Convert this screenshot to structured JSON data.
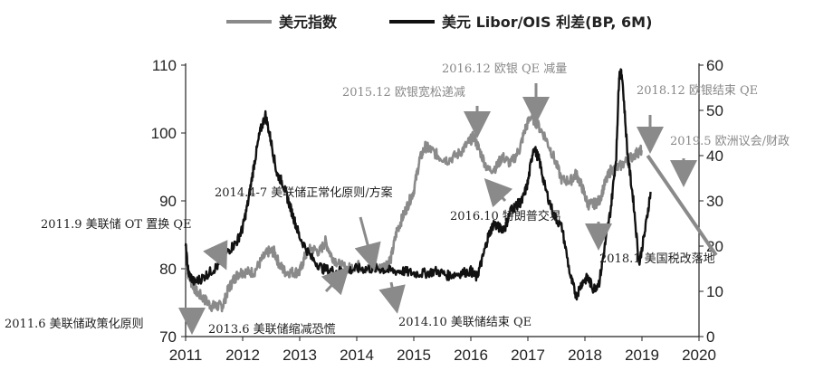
{
  "chart_data": {
    "type": "line",
    "legend": [
      {
        "label": "美元指数",
        "color": "#8a8a8a"
      },
      {
        "label": "美元 Libor/OIS 利差(BP, 6M)",
        "color": "#111111"
      }
    ],
    "left_axis": {
      "range": [
        70,
        110
      ],
      "ticks": [
        "70",
        "80",
        "90",
        "100",
        "110"
      ]
    },
    "right_axis": {
      "range": [
        0,
        60
      ],
      "ticks": [
        "0",
        "10",
        "20",
        "30",
        "40",
        "50",
        "60"
      ]
    },
    "x_axis": {
      "range": [
        2011,
        2020
      ],
      "ticks": [
        "2011",
        "2012",
        "2013",
        "2014",
        "2015",
        "2016",
        "2017",
        "2018",
        "2019",
        "2020"
      ]
    },
    "series": [
      {
        "name": "美元指数",
        "axis": "left",
        "color": "#8a8a8a",
        "x": [
          2011.0,
          2011.1,
          2011.2,
          2011.33,
          2011.45,
          2011.55,
          2011.65,
          2011.75,
          2011.85,
          2011.95,
          2012.05,
          2012.2,
          2012.35,
          2012.45,
          2012.55,
          2012.65,
          2012.75,
          2012.9,
          2013.0,
          2013.1,
          2013.2,
          2013.35,
          2013.45,
          2013.55,
          2013.7,
          2013.85,
          2014.0,
          2014.2,
          2014.4,
          2014.5,
          2014.6,
          2014.7,
          2014.8,
          2014.9,
          2015.0,
          2015.1,
          2015.2,
          2015.3,
          2015.45,
          2015.6,
          2015.8,
          2015.95,
          2016.05,
          2016.15,
          2016.3,
          2016.45,
          2016.55,
          2016.7,
          2016.85,
          2016.95,
          2017.05,
          2017.15,
          2017.3,
          2017.45,
          2017.6,
          2017.75,
          2017.85,
          2017.95,
          2018.05,
          2018.15,
          2018.25,
          2018.35,
          2018.45,
          2018.6,
          2018.75,
          2018.9,
          2019.0
        ],
        "values": [
          80.5,
          78.0,
          76.5,
          75.5,
          74.5,
          74.5,
          74.5,
          77.0,
          78.5,
          79.5,
          79.5,
          79.5,
          81.5,
          82.5,
          82.5,
          80.5,
          79.5,
          79.5,
          79.5,
          82.0,
          83.0,
          82.5,
          84.0,
          82.0,
          80.5,
          80.0,
          80.5,
          80.0,
          80.0,
          80.5,
          81.5,
          85.5,
          87.5,
          89.5,
          91.5,
          96.0,
          98.0,
          97.5,
          96.5,
          96.0,
          97.0,
          98.5,
          99.5,
          97.5,
          94.5,
          95.0,
          96.5,
          95.5,
          97.5,
          100.5,
          102.5,
          101.5,
          99.5,
          96.5,
          93.0,
          93.0,
          94.0,
          92.0,
          89.5,
          89.5,
          90.0,
          92.5,
          94.5,
          95.0,
          96.0,
          97.0,
          97.5
        ]
      },
      {
        "name": "美元 Libor/OIS 利差(BP, 6M)",
        "axis": "right",
        "color": "#111111",
        "x": [
          2011.0,
          2011.05,
          2011.15,
          2011.3,
          2011.45,
          2011.6,
          2011.75,
          2011.9,
          2012.0,
          2012.1,
          2012.2,
          2012.3,
          2012.4,
          2012.5,
          2012.6,
          2012.7,
          2012.8,
          2012.9,
          2013.0,
          2013.2,
          2013.4,
          2013.6,
          2013.8,
          2014.0,
          2014.2,
          2014.4,
          2014.6,
          2014.8,
          2015.0,
          2015.2,
          2015.4,
          2015.6,
          2015.8,
          2016.0,
          2016.1,
          2016.2,
          2016.3,
          2016.4,
          2016.5,
          2016.6,
          2016.7,
          2016.8,
          2016.9,
          2017.0,
          2017.1,
          2017.2,
          2017.3,
          2017.45,
          2017.6,
          2017.75,
          2017.85,
          2017.95,
          2018.05,
          2018.15,
          2018.25,
          2018.35,
          2018.45,
          2018.55,
          2018.6,
          2018.65,
          2018.75,
          2018.85,
          2018.95,
          2019.05,
          2019.15
        ],
        "values": [
          20.0,
          14.0,
          12.0,
          13.0,
          14.5,
          16.0,
          19.0,
          21.0,
          24.0,
          30.0,
          38.0,
          45.0,
          49.0,
          43.0,
          36.0,
          34.0,
          30.0,
          26.0,
          22.0,
          17.5,
          15.0,
          14.5,
          14.5,
          15.0,
          15.0,
          15.0,
          14.5,
          14.5,
          14.0,
          14.0,
          14.5,
          13.5,
          14.0,
          14.5,
          13.0,
          17.0,
          22.0,
          25.0,
          24.0,
          24.0,
          28.0,
          29.0,
          30.0,
          34.0,
          42.0,
          39.0,
          33.0,
          27.0,
          24.0,
          13.0,
          9.0,
          12.0,
          13.0,
          10.5,
          12.0,
          20.0,
          28.0,
          40.0,
          58.0,
          58.0,
          40.0,
          30.0,
          16.0,
          23.0,
          32.0
        ]
      }
    ],
    "annotations": [
      {
        "label": "2011.6 美联储政策化原则",
        "x": 2011.5,
        "y_right": 3,
        "color": "#111111"
      },
      {
        "label": "2011.9 美联储 OT 置换 QE",
        "x": 2011.7,
        "y_right": 19,
        "color": "#111111"
      },
      {
        "label": "2013.6 美联储缩减恐慌",
        "x": 2013.5,
        "y_right": 14,
        "color": "#111111"
      },
      {
        "label": "2014.4-7 美联储正常化原则/方案",
        "x": 2014.2,
        "y_right": 16,
        "color": "#111111"
      },
      {
        "label": "2014.10 美联储结束 QE",
        "x": 2014.6,
        "y_right": 12,
        "color": "#111111"
      },
      {
        "label": "2015.12 欧银宽松递减",
        "x": 2015.9,
        "y_right": 48,
        "color": "#8a8a8a"
      },
      {
        "label": "2016.12 欧银 QE 减量",
        "x": 2016.95,
        "y_right": 54,
        "color": "#8a8a8a"
      },
      {
        "label": "2016.10 特朗普交易",
        "x": 2016.7,
        "y_right": 34,
        "color": "#111111"
      },
      {
        "label": "2018.1 美国税改落地",
        "x": 2018.05,
        "y_right": 24,
        "color": "#111111"
      },
      {
        "label": "2018.12 欧银结束 QE",
        "x": 2018.95,
        "y_right": 44,
        "color": "#8a8a8a"
      },
      {
        "label": "2019.5 欧洲议会/财政",
        "x": 2019.5,
        "y_right": 36,
        "color": "#8a8a8a"
      }
    ],
    "trend_arrow": {
      "x_start": 2019.1,
      "y_right_start": 40,
      "x_end": 2020.3,
      "y_right_end": 18,
      "color": "#8a8a8a"
    }
  }
}
